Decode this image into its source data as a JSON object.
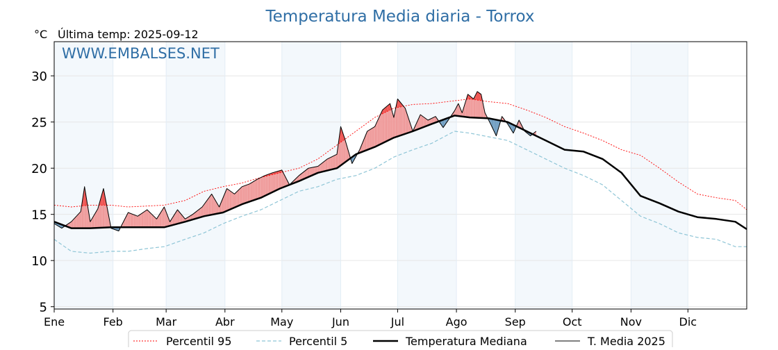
{
  "chart_data": {
    "type": "line",
    "title": "Temperatura Media diaria - Torrox",
    "unit_label": "°C",
    "last_temp_label": "Última temp: 2025-09-12",
    "watermark": "WWW.EMBALSES.NET",
    "ylim": [
      4.75,
      33.7
    ],
    "yticks": [
      5,
      10,
      15,
      20,
      25,
      30
    ],
    "months": [
      "Ene",
      "Feb",
      "Mar",
      "Abr",
      "May",
      "Jun",
      "Jul",
      "Ago",
      "Sep",
      "Oct",
      "Nov",
      "Dic"
    ],
    "month_start_days": [
      1,
      32,
      60,
      91,
      121,
      152,
      182,
      213,
      244,
      274,
      305,
      335
    ],
    "x_range_days": [
      1,
      366
    ],
    "shaded_month_pairs": [
      [
        1,
        32
      ],
      [
        60,
        91
      ],
      [
        121,
        152
      ],
      [
        182,
        213
      ],
      [
        244,
        274
      ],
      [
        305,
        335
      ]
    ],
    "grid": true,
    "legend_position": "bottom",
    "colors": {
      "title": "#2f6ea5",
      "watermark": "#2f6ea5",
      "p95": "#ff0000",
      "p5": "#8ec5d6",
      "median": "#000000",
      "t2025": "#000000",
      "above_fill": "#ef9a9a",
      "above_strong_fill": "#ef5350",
      "below_fill": "#6f9ec2",
      "month_shade": "#f3f8fc"
    },
    "series": [
      {
        "name": "Percentil 95",
        "key": "p95",
        "style": "dotted",
        "x": [
          1,
          10,
          20,
          31,
          40,
          50,
          59,
          70,
          80,
          90,
          100,
          110,
          120,
          130,
          140,
          150,
          160,
          170,
          180,
          190,
          200,
          212,
          220,
          230,
          240,
          250,
          260,
          270,
          280,
          290,
          300,
          310,
          320,
          330,
          340,
          350,
          360,
          366
        ],
        "values": [
          16.0,
          15.8,
          16.0,
          16.0,
          15.8,
          15.9,
          16.0,
          16.5,
          17.5,
          18.0,
          18.4,
          19.0,
          19.5,
          20.0,
          21.0,
          22.5,
          24.0,
          25.5,
          26.5,
          26.9,
          27.0,
          27.3,
          27.5,
          27.2,
          27.0,
          26.3,
          25.5,
          24.5,
          23.8,
          23.0,
          22.0,
          21.4,
          20.0,
          18.5,
          17.2,
          16.8,
          16.5,
          15.5
        ]
      },
      {
        "name": "Percentil 5",
        "key": "p5",
        "style": "dashed",
        "x": [
          1,
          10,
          20,
          31,
          40,
          50,
          59,
          70,
          80,
          90,
          100,
          110,
          120,
          130,
          140,
          150,
          160,
          170,
          180,
          190,
          200,
          212,
          220,
          230,
          240,
          250,
          260,
          270,
          280,
          290,
          300,
          310,
          320,
          330,
          340,
          350,
          360,
          366
        ],
        "values": [
          12.3,
          11.0,
          10.8,
          11.0,
          11.0,
          11.3,
          11.5,
          12.3,
          13.0,
          14.0,
          14.8,
          15.5,
          16.5,
          17.5,
          18.0,
          18.8,
          19.2,
          20.0,
          21.2,
          22.0,
          22.7,
          24.0,
          23.8,
          23.4,
          23.0,
          22.0,
          21.0,
          20.0,
          19.2,
          18.2,
          16.5,
          14.8,
          14.0,
          13.0,
          12.5,
          12.3,
          11.5,
          11.5
        ]
      },
      {
        "name": "Temperatura Mediana",
        "key": "median",
        "style": "thick",
        "x": [
          1,
          10,
          20,
          31,
          40,
          50,
          59,
          70,
          80,
          90,
          100,
          110,
          120,
          130,
          140,
          150,
          160,
          170,
          180,
          190,
          200,
          212,
          220,
          230,
          240,
          250,
          260,
          270,
          280,
          290,
          300,
          310,
          320,
          330,
          340,
          350,
          360,
          366
        ],
        "values": [
          14.2,
          13.5,
          13.5,
          13.6,
          13.6,
          13.6,
          13.6,
          14.2,
          14.8,
          15.2,
          16.1,
          16.8,
          17.8,
          18.6,
          19.5,
          20.0,
          21.5,
          22.3,
          23.3,
          24.0,
          24.8,
          25.7,
          25.5,
          25.4,
          25.0,
          24.0,
          23.0,
          22.0,
          21.8,
          21.0,
          19.5,
          17.0,
          16.2,
          15.3,
          14.7,
          14.5,
          14.2,
          13.4
        ]
      },
      {
        "name": "T. Media 2025",
        "key": "t2025",
        "style": "thin",
        "x": [
          1,
          5,
          10,
          15,
          17,
          20,
          24,
          27,
          31,
          35,
          40,
          45,
          50,
          55,
          59,
          62,
          66,
          70,
          74,
          79,
          84,
          88,
          92,
          96,
          100,
          104,
          108,
          112,
          116,
          121,
          125,
          130,
          135,
          140,
          145,
          150,
          152,
          154,
          158,
          162,
          166,
          170,
          174,
          178,
          180,
          182,
          186,
          190,
          194,
          198,
          202,
          206,
          210,
          212,
          214,
          216,
          219,
          222,
          224,
          226,
          228,
          231,
          234,
          237,
          240,
          243,
          246,
          249,
          252,
          255
        ],
        "values": [
          14.0,
          13.5,
          14.2,
          15.3,
          18.0,
          14.2,
          15.6,
          17.8,
          13.5,
          13.2,
          15.2,
          14.8,
          15.5,
          14.5,
          15.8,
          14.2,
          15.5,
          14.5,
          15.0,
          15.8,
          17.2,
          15.8,
          17.8,
          17.2,
          18.0,
          18.3,
          18.8,
          19.2,
          19.5,
          19.8,
          18.2,
          19.2,
          20.0,
          20.2,
          21.0,
          21.5,
          24.5,
          23.3,
          20.5,
          22.0,
          24.0,
          24.5,
          26.3,
          27.0,
          25.5,
          27.5,
          26.5,
          24.0,
          25.8,
          25.2,
          25.6,
          24.4,
          25.6,
          26.2,
          27.0,
          26.0,
          28.0,
          27.5,
          28.3,
          28.0,
          26.0,
          24.8,
          23.5,
          25.6,
          24.8,
          23.8,
          25.2,
          24.0,
          23.5,
          24.0
        ]
      }
    ]
  },
  "legend": [
    {
      "key": "p95",
      "label": "Percentil 95"
    },
    {
      "key": "p5",
      "label": "Percentil 5"
    },
    {
      "key": "median",
      "label": "Temperatura Mediana"
    },
    {
      "key": "t2025",
      "label": "T. Media 2025"
    }
  ]
}
